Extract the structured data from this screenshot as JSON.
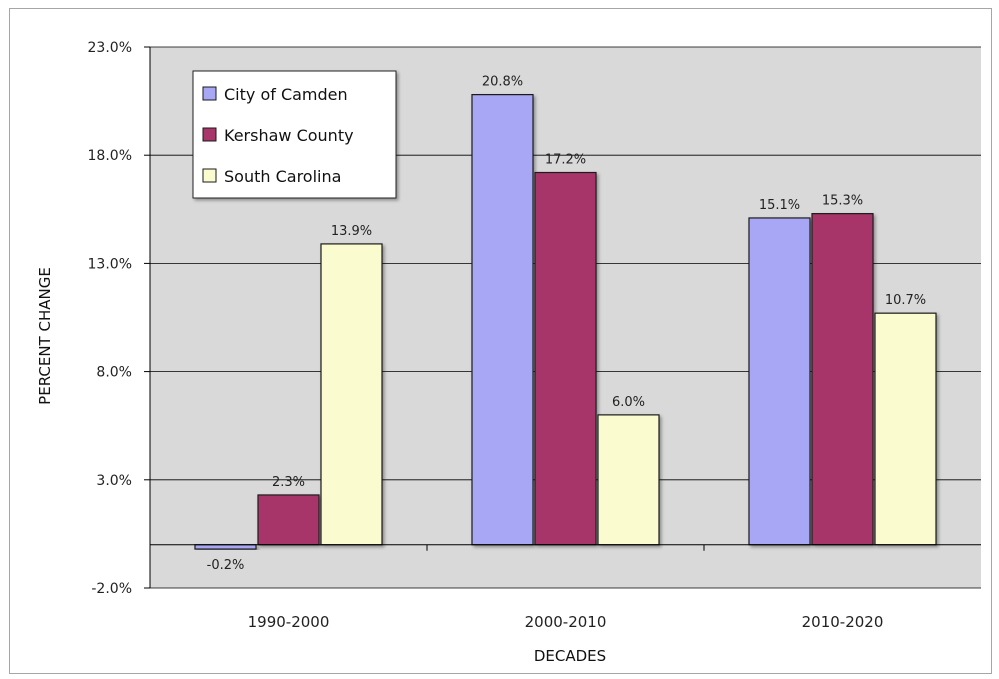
{
  "chart_data": {
    "type": "bar",
    "categories": [
      "1990-2000",
      "2000-2010",
      "2010-2020"
    ],
    "series": [
      {
        "name": "City of Camden",
        "values": [
          -0.2,
          20.8,
          15.1
        ],
        "labels": [
          "-0.2%",
          "20.8%",
          "15.1%"
        ],
        "color": "#a7a7f5"
      },
      {
        "name": "Kershaw County",
        "values": [
          2.3,
          17.2,
          15.3
        ],
        "labels": [
          "2.3%",
          "17.2%",
          "15.3%"
        ],
        "color": "#a8366a"
      },
      {
        "name": "South Carolina",
        "values": [
          13.9,
          6.0,
          10.7
        ],
        "labels": [
          "13.9%",
          "6.0%",
          "10.7%"
        ],
        "color": "#fbfbd0"
      }
    ],
    "xlabel": "DECADES",
    "ylabel": "PERCENT CHANGE",
    "ylim": [
      -2.0,
      23.0
    ],
    "yticks": [
      -2.0,
      3.0,
      8.0,
      13.0,
      18.0,
      23.0
    ],
    "ytick_labels": [
      "-2.0%",
      "3.0%",
      "8.0%",
      "13.0%",
      "18.0%",
      "23.0%"
    ],
    "grid": true,
    "legend_position": "top-left",
    "plot_background": "#d9d9d9"
  }
}
